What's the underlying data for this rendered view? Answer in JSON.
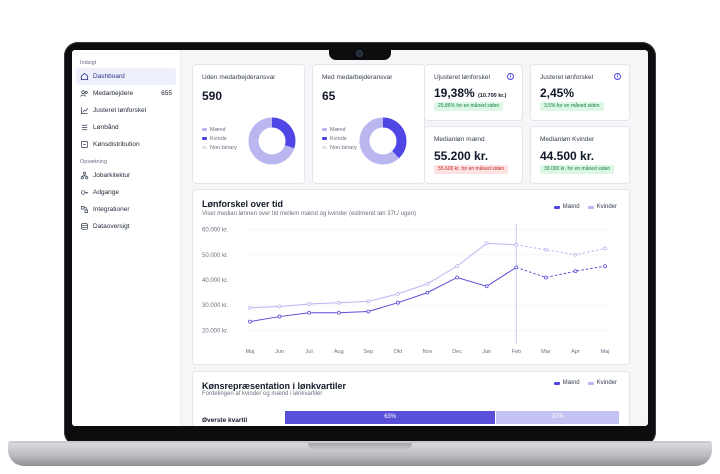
{
  "sidebar": {
    "section_insight": "Indsigt",
    "items": [
      {
        "label": "Dashboard",
        "icon": "home-icon"
      },
      {
        "label": "Medarbejdere",
        "count": "655",
        "icon": "users-icon"
      },
      {
        "label": "Justeret lønforskel",
        "icon": "chart-icon"
      },
      {
        "label": "Lønbånd",
        "icon": "bands-icon"
      },
      {
        "label": "Kønsdistribution",
        "icon": "distribution-icon"
      }
    ],
    "section_setup": "Opsætning",
    "setup_items": [
      {
        "label": "Jobarkitektur",
        "icon": "hierarchy-icon"
      },
      {
        "label": "Adgange",
        "icon": "key-icon"
      },
      {
        "label": "Integrationer",
        "icon": "integration-icon"
      },
      {
        "label": "Dataoversigt",
        "icon": "database-icon"
      }
    ]
  },
  "donut_cards": [
    {
      "title": "Uden medarbejderansvar",
      "value": "590",
      "legend": [
        "Mænd",
        "Kvinde",
        "Non-binary"
      ],
      "share_men": 0.7,
      "share_women": 0.3
    },
    {
      "title": "Med medarbejderansvar",
      "value": "65",
      "legend": [
        "Mænd",
        "Kvinde",
        "Non-binary"
      ],
      "share_men": 0.62,
      "share_women": 0.38
    }
  ],
  "stat_cards": [
    {
      "title": "Ujusteret lønforskel",
      "value": "19,38%",
      "suffix": "(10.700 kr.)",
      "badge": "29,86% for en måned siden",
      "badge_type": "green",
      "info": "i"
    },
    {
      "title": "Justeret lønforskel",
      "value": "2,45%",
      "suffix": "",
      "badge": "3,5% for en måned siden",
      "badge_type": "green",
      "info": "i"
    },
    {
      "title": "Medianløn mænd",
      "value": "55.200 kr.",
      "suffix": "",
      "badge": "55.600 kr. for en måned siden",
      "badge_type": "red"
    },
    {
      "title": "Medianløn Kvinder",
      "value": "44.500 kr.",
      "suffix": "",
      "badge": "39.000 kr. for en måned siden",
      "badge_type": "green"
    }
  ],
  "line_chart": {
    "title": "Lønforskel over tid",
    "subtitle": "Viser median lønnen over tid mellem mænd og kvinder (estimeret løn 37t./ ugen)",
    "legend": [
      "Mænd",
      "Kvinder"
    ]
  },
  "bar_chart": {
    "title": "Kønsrepræsentation i lønkvartiler",
    "subtitle": "Fordelingen af kvinder og mænd i lønkvartiler",
    "legend": [
      "Mænd",
      "Kvinder"
    ],
    "row_label": "Øverste kvartil",
    "men_label": "63%",
    "women_label": "37%"
  },
  "colors": {
    "accent": "#4f46e5",
    "accent_light": "#b4b2ee",
    "men": "#5a4fd8",
    "women": "#b9b6f0"
  },
  "chart_data": [
    {
      "type": "line",
      "title": "Lønforskel over tid",
      "x": [
        "Maj",
        "Jun",
        "Jul",
        "Aug",
        "Sep",
        "Okt",
        "Nov",
        "Dec",
        "Jan",
        "Feb",
        "Mar",
        "Apr",
        "Maj"
      ],
      "yticks": [
        "20.000 kr.",
        "30.000 kr.",
        "40.000 kr.",
        "50.000 kr.",
        "60.000 kr."
      ],
      "ylim": [
        17000,
        63000
      ],
      "series": [
        {
          "name": "Mænd",
          "values": [
            23500,
            25500,
            27000,
            27000,
            27500,
            31000,
            35000,
            41000,
            37500,
            45000,
            41000,
            43500,
            45500
          ],
          "projected_from": 9
        },
        {
          "name": "Kvinder",
          "values": [
            29000,
            29500,
            30500,
            31000,
            31500,
            34500,
            38500,
            45500,
            54500,
            54000,
            52000,
            50000,
            52500
          ],
          "projected_from": 9
        }
      ],
      "highlight_index": 9
    },
    {
      "type": "bar",
      "title": "Kønsrepræsentation i lønkvartiler",
      "categories": [
        "Øverste kvartil"
      ],
      "series": [
        {
          "name": "Mænd",
          "values": [
            63
          ]
        },
        {
          "name": "Kvinder",
          "values": [
            37
          ]
        }
      ]
    }
  ]
}
